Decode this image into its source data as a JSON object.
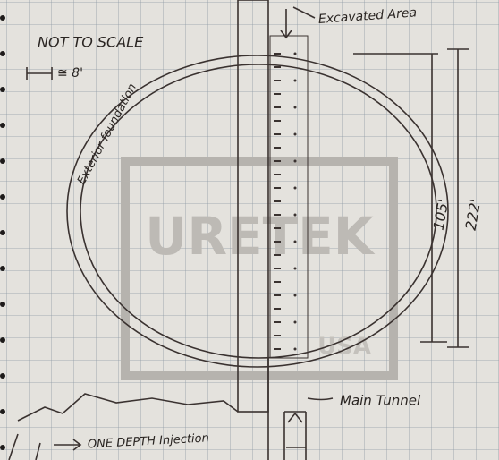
{
  "notes": {
    "not_to_scale": "NOT TO SCALE",
    "scale": "≅ 8'",
    "excavated_area": "Excavated Area",
    "exterior_foundation": "Exterior foundation",
    "inner_dimension": "105'",
    "outer_dimension": "222'",
    "main_tunnel": "Main Tunnel",
    "injection": "ONE DEPTH Injection"
  },
  "watermark": {
    "brand": "URETEK",
    "country": "USA"
  }
}
